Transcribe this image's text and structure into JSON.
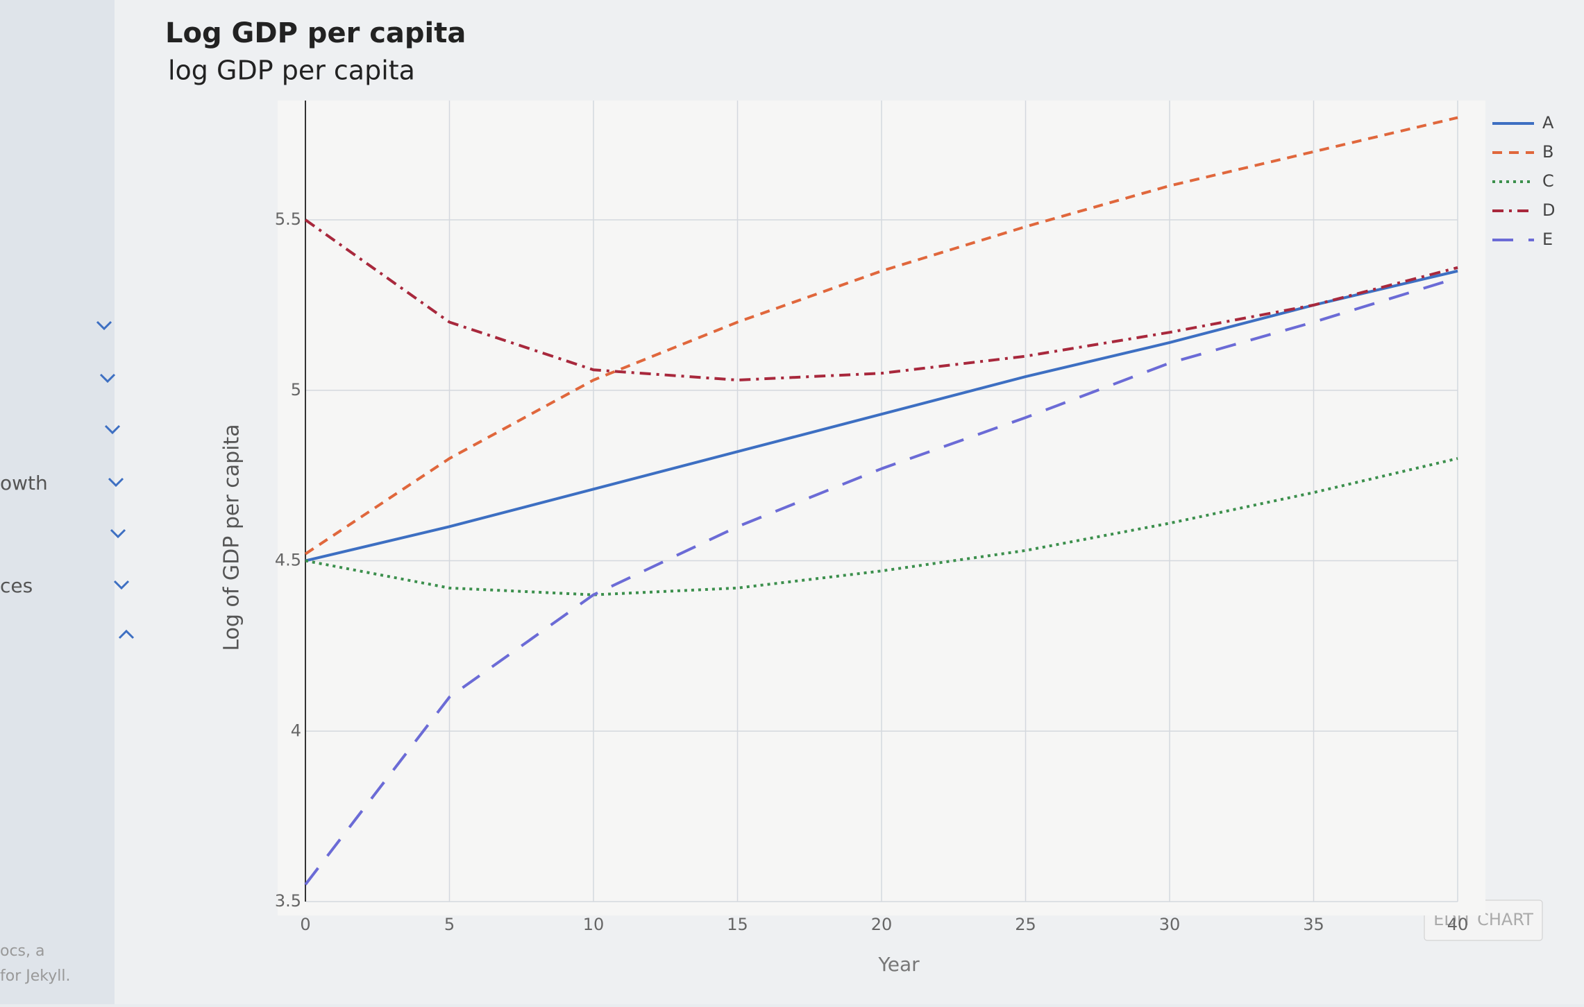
{
  "chart_data": {
    "type": "line",
    "title": "Log GDP per capita",
    "subtitle": "log GDP per capita",
    "x_label": "Year",
    "y_label": "Log of GDP per capita",
    "x": [
      0,
      5,
      10,
      15,
      20,
      25,
      30,
      35,
      40
    ],
    "series": [
      {
        "name": "A",
        "color": "#3d6fc2",
        "dash": "solid",
        "values": [
          4.5,
          4.6,
          4.71,
          4.82,
          4.93,
          5.04,
          5.14,
          5.25,
          5.35
        ]
      },
      {
        "name": "B",
        "color": "#e0673c",
        "dash": "dash",
        "values": [
          4.52,
          4.8,
          5.03,
          5.2,
          5.35,
          5.48,
          5.6,
          5.7,
          5.8
        ]
      },
      {
        "name": "C",
        "color": "#3b8f4c",
        "dash": "dot",
        "values": [
          4.5,
          4.42,
          4.4,
          4.42,
          4.47,
          4.53,
          4.61,
          4.7,
          4.8
        ]
      },
      {
        "name": "D",
        "color": "#a8283c",
        "dash": "dashdot",
        "values": [
          5.5,
          5.2,
          5.06,
          5.03,
          5.05,
          5.1,
          5.17,
          5.25,
          5.36
        ]
      },
      {
        "name": "E",
        "color": "#6b6bd6",
        "dash": "longdash",
        "values": [
          3.55,
          4.1,
          4.4,
          4.6,
          4.77,
          4.92,
          5.08,
          5.2,
          5.33
        ]
      }
    ],
    "xlim": [
      0,
      40
    ],
    "xticks": [
      0,
      5,
      10,
      15,
      20,
      25,
      30,
      35,
      40
    ],
    "ylim": [
      3.5,
      5.85
    ],
    "yticks": [
      3.5,
      4,
      4.5,
      5,
      5.5
    ],
    "grid": true,
    "legend": "top-right"
  },
  "button": "EDIT CHART",
  "sidebar": {
    "items": [
      "owth",
      "ces",
      "ocs, a",
      "for Jekyll."
    ]
  }
}
